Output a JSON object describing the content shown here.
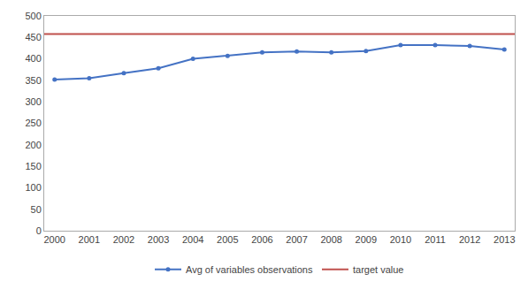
{
  "chart_data": {
    "type": "line",
    "x": [
      2000,
      2001,
      2002,
      2003,
      2004,
      2005,
      2006,
      2007,
      2008,
      2009,
      2010,
      2011,
      2012,
      2013
    ],
    "series": [
      {
        "name": "Avg of variables observations",
        "color": "#4472C4",
        "marker": "circle",
        "line_style": "solid",
        "values": [
          352,
          355,
          367,
          378,
          400,
          407,
          415,
          417,
          415,
          418,
          432,
          432,
          430,
          422
        ]
      }
    ],
    "target": {
      "name": "target value",
      "color": "#C0504D",
      "value": 458
    },
    "xlim": [
      1999.7,
      2013.3
    ],
    "xticks": [
      2000,
      2001,
      2002,
      2003,
      2004,
      2005,
      2006,
      2007,
      2008,
      2009,
      2010,
      2011,
      2012,
      2013
    ],
    "ylim": [
      0,
      500
    ],
    "yticks": [
      0,
      50,
      100,
      150,
      200,
      250,
      300,
      350,
      400,
      450,
      500
    ],
    "grid": false,
    "legend": "bottom"
  }
}
